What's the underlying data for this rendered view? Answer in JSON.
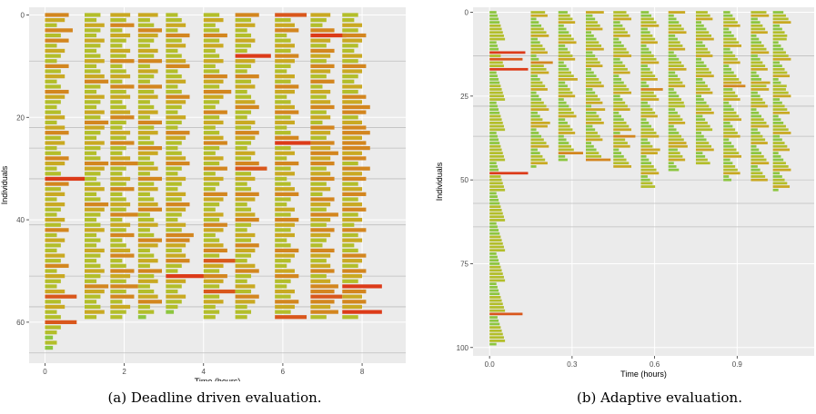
{
  "figures": {
    "a": {
      "caption": "(a) Deadline driven evaluation."
    },
    "b": {
      "caption": "(b) Adaptive evaluation."
    }
  },
  "colors": {
    "panel_background": "#EBEBEB",
    "gridline": "#FFFFFF",
    "generation_separator": "#BEBEBE",
    "duration_scale": [
      "#5DC443",
      "#8DC63F",
      "#B3BE2A",
      "#C9A922",
      "#D3861F",
      "#D9571C",
      "#DC3B19"
    ]
  },
  "chart_data": [
    {
      "type": "bar",
      "orientation": "horizontal",
      "subtype": "gantt",
      "xlabel": "Time (hours)",
      "ylabel": "Individuals",
      "x_ticks": [
        0,
        2,
        4,
        6,
        8
      ],
      "y_ticks": [
        0,
        20,
        40,
        60
      ],
      "xlim": [
        -0.4,
        9.1
      ],
      "ylim": [
        -1.5,
        68
      ],
      "y_reversed": true,
      "legend": "none",
      "grid": true,
      "generation_starts": [
        0,
        1,
        1.65,
        2.35,
        3.05,
        4.0,
        4.8,
        5.8,
        6.7,
        7.5
      ],
      "generation_separators": [
        9,
        22,
        26,
        32,
        41,
        51,
        57,
        66
      ],
      "task_durations": [
        [
          0.6,
          0.5,
          0.3,
          0.7,
          0.4,
          0.6,
          0.3,
          0.5,
          0.4,
          0.3,
          0.6,
          0.4,
          0.5,
          0.3,
          0.4,
          0.6,
          0.5,
          0.4,
          0.3,
          0.4,
          0.5,
          0.3,
          0.5,
          0.6,
          0.4,
          0.5,
          0.3,
          0.4,
          0.6,
          0.5,
          0.3,
          0.4,
          1.0,
          0.6,
          0.4,
          0.5,
          0.3,
          0.5,
          0.4,
          0.3,
          0.5,
          0.4,
          0.6,
          0.3,
          0.5,
          0.4,
          0.3,
          0.5,
          0.4,
          0.6,
          0.3,
          0.5,
          0.4,
          0.3,
          0.5,
          0.8,
          0.4,
          0.5,
          0.3,
          0.4,
          0.8,
          0.4,
          0.3,
          0.2,
          0.3,
          0.2
        ],
        [
          0.4,
          0.3,
          0.5,
          0.4,
          0.3,
          0.5,
          0.4,
          0.3,
          0.4,
          0.5,
          0.3,
          0.4,
          0.5,
          0.6,
          0.4,
          0.3,
          0.5,
          0.4,
          0.3,
          0.5,
          0.4,
          0.6,
          0.5,
          0.4,
          0.3,
          0.5,
          0.4,
          0.3,
          0.4,
          0.6,
          0.5,
          0.4,
          0.3,
          0.4,
          0.5,
          0.3,
          0.4,
          0.6,
          0.5,
          0.4,
          0.3,
          0.4,
          0.5,
          0.3,
          0.4,
          0.3,
          0.5,
          0.4,
          0.3,
          0.4,
          0.5,
          0.4,
          0.3,
          0.6,
          0.5,
          0.4,
          0.3,
          0.4,
          0.5,
          0.3
        ],
        [
          0.5,
          0.4,
          0.6,
          0.3,
          0.5,
          0.4,
          0.3,
          0.5,
          0.4,
          0.6,
          0.3,
          0.4,
          0.5,
          0.3,
          0.6,
          0.4,
          0.5,
          0.3,
          0.4,
          0.5,
          0.6,
          0.4,
          0.3,
          0.5,
          0.4,
          0.6,
          0.4,
          0.3,
          0.5,
          0.7,
          0.4,
          0.3,
          0.5,
          0.4,
          0.6,
          0.3,
          0.4,
          0.5,
          0.4,
          0.7,
          0.3,
          0.5,
          0.4,
          0.6,
          0.3,
          0.4,
          0.5,
          0.6,
          0.3,
          0.4,
          0.6,
          0.5,
          0.4,
          0.7,
          0.4,
          0.6,
          0.3,
          0.5,
          0.4,
          0.3
        ],
        [
          0.5,
          0.3,
          0.4,
          0.6,
          0.5,
          0.4,
          0.3,
          0.5,
          0.4,
          0.6,
          0.3,
          0.5,
          0.4,
          0.3,
          0.6,
          0.4,
          0.5,
          0.3,
          0.4,
          0.5,
          0.3,
          0.6,
          0.4,
          0.5,
          0.3,
          0.4,
          0.6,
          0.5,
          0.3,
          0.4,
          0.5,
          0.3,
          0.6,
          0.4,
          0.5,
          0.3,
          0.4,
          0.5,
          0.6,
          0.3,
          0.4,
          0.5,
          0.3,
          0.4,
          0.6,
          0.5,
          0.3,
          0.4,
          0.5,
          0.3,
          0.6,
          0.4,
          0.5,
          0.3,
          0.4,
          0.5,
          0.6,
          0.3,
          0.4,
          0.2
        ],
        [
          0.3,
          0.4,
          0.5,
          0.3,
          0.6,
          0.4,
          0.5,
          0.3,
          0.4,
          0.5,
          0.6,
          0.3,
          0.4,
          0.5,
          0.3,
          0.4,
          0.6,
          0.5,
          0.4,
          0.3,
          0.5,
          0.4,
          0.3,
          0.6,
          0.5,
          0.4,
          0.3,
          0.4,
          0.5,
          0.6,
          0.4,
          0.3,
          0.5,
          0.4,
          0.3,
          0.5,
          0.4,
          0.6,
          0.5,
          0.4,
          0.3,
          0.5,
          0.4,
          0.7,
          0.6,
          0.5,
          0.4,
          0.5,
          0.6,
          0.4,
          0.3,
          1.0,
          0.5,
          0.4,
          0.3,
          0.5,
          0.4,
          0.3,
          0.2
        ],
        [
          0.4,
          0.5,
          0.3,
          0.4,
          0.6,
          0.4,
          0.5,
          0.3,
          0.4,
          0.5,
          0.3,
          0.4,
          0.6,
          0.5,
          0.4,
          0.7,
          0.5,
          0.4,
          0.3,
          0.6,
          0.4,
          0.5,
          0.3,
          0.4,
          0.5,
          0.6,
          0.4,
          0.3,
          0.5,
          0.4,
          0.6,
          0.3,
          0.5,
          0.4,
          0.3,
          0.6,
          0.5,
          0.4,
          0.3,
          0.5,
          0.4,
          0.6,
          0.5,
          0.3,
          0.4,
          0.5,
          0.6,
          0.4,
          0.8,
          0.5,
          0.4,
          0.6,
          0.5,
          0.4,
          0.8,
          0.4,
          0.5,
          0.3,
          0.4,
          0.3
        ],
        [
          0.6,
          0.4,
          0.5,
          0.3,
          0.4,
          0.5,
          0.4,
          0.3,
          0.9,
          0.5,
          0.4,
          0.3,
          0.6,
          0.4,
          0.5,
          0.3,
          0.4,
          0.5,
          0.6,
          0.4,
          0.3,
          0.5,
          0.4,
          0.6,
          0.5,
          0.4,
          0.3,
          0.5,
          0.4,
          0.6,
          0.8,
          0.4,
          0.5,
          0.3,
          0.4,
          0.6,
          0.5,
          0.3,
          0.4,
          0.5,
          0.6,
          0.4,
          0.3,
          0.5,
          0.4,
          0.6,
          0.5,
          0.4,
          0.3,
          0.5,
          0.6,
          0.4,
          0.3,
          0.5,
          0.4,
          0.6,
          0.5,
          0.3,
          0.4,
          0.3
        ],
        [
          0.8,
          0.4,
          0.5,
          0.6,
          0.3,
          0.4,
          0.5,
          0.4,
          0.6,
          0.5,
          0.4,
          0.3,
          0.5,
          0.4,
          0.6,
          0.5,
          0.3,
          0.4,
          0.5,
          0.6,
          0.4,
          0.5,
          0.3,
          0.4,
          0.6,
          0.9,
          0.4,
          0.5,
          0.3,
          0.6,
          0.4,
          0.5,
          0.3,
          0.4,
          0.5,
          0.6,
          0.4,
          0.3,
          0.5,
          0.4,
          0.6,
          0.5,
          0.4,
          0.5,
          0.3,
          0.4,
          0.6,
          0.5,
          0.4,
          0.3,
          0.5,
          0.6,
          0.4,
          0.3,
          0.5,
          0.4,
          0.6,
          0.5,
          0.4,
          0.8
        ],
        [
          0.5,
          0.4,
          0.3,
          0.6,
          0.9,
          0.5,
          0.4,
          0.6,
          0.5,
          0.4,
          0.6,
          0.5,
          0.4,
          0.6,
          0.3,
          0.5,
          0.4,
          0.5,
          0.6,
          0.4,
          0.5,
          0.3,
          0.6,
          0.5,
          0.4,
          0.6,
          0.5,
          0.7,
          0.5,
          0.6,
          0.4,
          0.5,
          0.6,
          0.4,
          0.5,
          0.3,
          0.6,
          0.5,
          0.4,
          0.7,
          0.5,
          0.4,
          0.6,
          0.5,
          0.4,
          0.3,
          0.6,
          0.5,
          0.4,
          0.5,
          0.6,
          0.4,
          0.5,
          0.7,
          0.6,
          0.8,
          0.6,
          0.5,
          0.7,
          0.4
        ],
        [
          0.4,
          0.3,
          0.5,
          0.4,
          0.6,
          0.5,
          0.4,
          0.3,
          0.5,
          0.4,
          0.6,
          0.5,
          0.4,
          0.3,
          0.5,
          0.4,
          0.6,
          0.5,
          0.7,
          0.6,
          0.4,
          0.5,
          0.6,
          0.7,
          0.5,
          0.6,
          0.7,
          0.5,
          0.6,
          0.4,
          0.7,
          0.5,
          0.6,
          0.4,
          0.5,
          0.6,
          0.4,
          0.5,
          0.6,
          0.4,
          0.5,
          0.3,
          0.6,
          0.4,
          0.5,
          0.3,
          0.4,
          0.6,
          0.5,
          0.4,
          0.6,
          0.5,
          0.4,
          1.0,
          0.6,
          0.5,
          0.6,
          0.5,
          1.0,
          0.4
        ]
      ]
    },
    {
      "type": "bar",
      "orientation": "horizontal",
      "subtype": "gantt",
      "xlabel": "Time (hours)",
      "ylabel": "Individuals",
      "x_ticks": [
        0.0,
        0.3,
        0.6,
        0.9
      ],
      "y_ticks": [
        0,
        25,
        50,
        75,
        100
      ],
      "xlim": [
        -0.06,
        1.18
      ],
      "ylim": [
        -1.5,
        102.5
      ],
      "y_reversed": true,
      "legend": "none",
      "grid": true,
      "generation_starts": [
        0,
        0.15,
        0.25,
        0.35,
        0.45,
        0.55,
        0.65,
        0.75,
        0.85,
        0.95,
        1.03
      ],
      "generation_sizes": [
        100,
        47,
        45,
        45,
        47,
        53,
        48,
        46,
        51,
        51,
        54
      ],
      "generation_separators": [
        13,
        28,
        37,
        50,
        57,
        64
      ],
      "long_task_rows": {
        "12": 0.13,
        "14": 0.12,
        "17": 0.14,
        "48": 0.14,
        "90": 0.12
      },
      "segment_long_rows": [
        {
          "17": 0.09
        },
        {
          "15": 0.08,
          "33": 0.07
        },
        {
          "42": 0.09,
          "20": 0.07
        },
        {
          "44": 0.09,
          "29": 0.07
        },
        {
          "37": 0.08
        },
        {
          "23": 0.08,
          "41": 0.07
        },
        {
          "40": 0.07,
          "28": 0.06
        },
        {
          "35": 0.06
        },
        {
          "22": 0.08
        },
        {
          "21": 0.07
        },
        {
          "22": 0.05,
          "8": 0.05
        }
      ]
    }
  ]
}
